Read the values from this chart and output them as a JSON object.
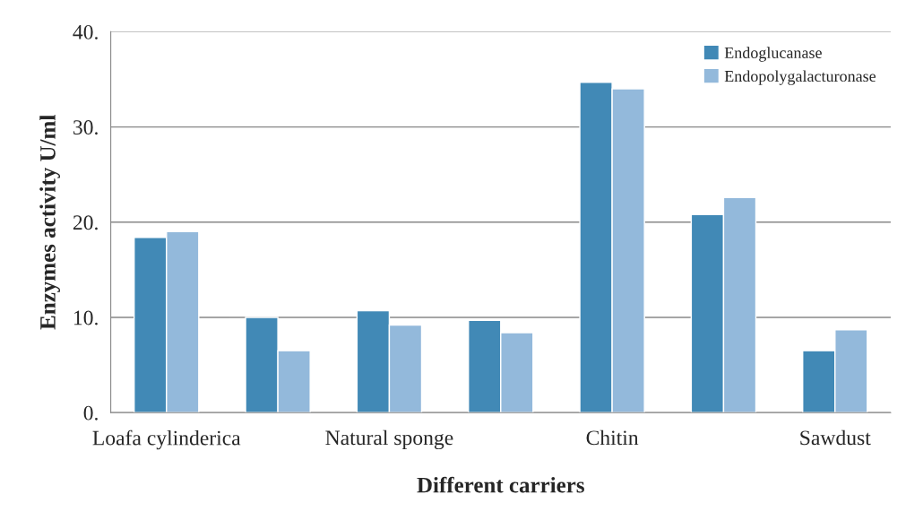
{
  "chart_data": {
    "type": "bar",
    "xlabel": "Different carriers",
    "ylabel": "Enzymes activity U/ml",
    "categories": [
      "Loafa cylinderica",
      null,
      "Natural sponge",
      null,
      "Chitin",
      null,
      "Sawdust"
    ],
    "series": [
      {
        "name": "Endoglucanase",
        "color": "#4189b6",
        "values": [
          18.4,
          10.0,
          10.7,
          9.7,
          34.7,
          20.8,
          6.5
        ]
      },
      {
        "name": "Endopolygalacturonase",
        "color": "#93b9db",
        "values": [
          19.0,
          6.5,
          9.2,
          8.4,
          34.0,
          22.6,
          8.7
        ]
      }
    ],
    "ylim": [
      0,
      40
    ],
    "yticks": [
      {
        "value": 0,
        "label": "0."
      },
      {
        "value": 10,
        "label": "10."
      },
      {
        "value": 20,
        "label": "20."
      },
      {
        "value": 30,
        "label": "30."
      },
      {
        "value": 40,
        "label": "40."
      }
    ],
    "grid": "y",
    "legend": "top right"
  }
}
